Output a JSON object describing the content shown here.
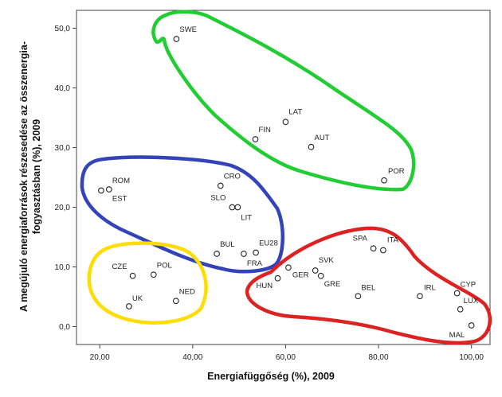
{
  "chart_data": {
    "type": "scatter",
    "xlabel": "Energiafüggőség (%), 2009",
    "ylabel_lines": [
      "A megújuló energiaforrások részesedése az összenergia-",
      "fogyasztásban (%), 2009"
    ],
    "xlim": [
      15,
      104
    ],
    "ylim": [
      -3,
      53
    ],
    "x_ticks": [
      20,
      40,
      60,
      80,
      100
    ],
    "x_tick_labels": [
      "20,00",
      "40,00",
      "60,00",
      "80,00",
      "100,00"
    ],
    "y_ticks": [
      0,
      10,
      20,
      30,
      40,
      50
    ],
    "y_tick_labels": [
      "0,0",
      "10,0",
      "20,0",
      "30,0",
      "40,0",
      "50,0"
    ],
    "grid": false,
    "legend": "none",
    "points": [
      {
        "label": "SWE",
        "x": 36.5,
        "y": 48.2
      },
      {
        "label": "LAT",
        "x": 60.0,
        "y": 34.3
      },
      {
        "label": "FIN",
        "x": 53.5,
        "y": 31.4
      },
      {
        "label": "AUT",
        "x": 65.5,
        "y": 30.1
      },
      {
        "label": "POR",
        "x": 81.2,
        "y": 24.5
      },
      {
        "label": "ROM",
        "x": 22.0,
        "y": 23.0
      },
      {
        "label": "EST",
        "x": 20.3,
        "y": 22.8
      },
      {
        "label": "CRO",
        "x": 46.0,
        "y": 23.6
      },
      {
        "label": "SLO",
        "x": 48.5,
        "y": 20.0
      },
      {
        "label": "LIT",
        "x": 49.7,
        "y": 20.0
      },
      {
        "label": "BUL",
        "x": 45.2,
        "y": 12.2
      },
      {
        "label": "FRA",
        "x": 51.0,
        "y": 12.2
      },
      {
        "label": "EU28",
        "x": 53.6,
        "y": 12.4
      },
      {
        "label": "CZE",
        "x": 27.1,
        "y": 8.5
      },
      {
        "label": "POL",
        "x": 31.6,
        "y": 8.7
      },
      {
        "label": "UK",
        "x": 26.3,
        "y": 3.4
      },
      {
        "label": "NED",
        "x": 36.4,
        "y": 4.3
      },
      {
        "label": "SPA",
        "x": 78.9,
        "y": 13.1
      },
      {
        "label": "ITA",
        "x": 81.0,
        "y": 12.8
      },
      {
        "label": "SVK",
        "x": 66.4,
        "y": 9.4
      },
      {
        "label": "GER",
        "x": 60.6,
        "y": 9.9
      },
      {
        "label": "GRE",
        "x": 67.6,
        "y": 8.5
      },
      {
        "label": "HUN",
        "x": 58.3,
        "y": 8.1
      },
      {
        "label": "BEL",
        "x": 75.6,
        "y": 5.1
      },
      {
        "label": "IRL",
        "x": 88.9,
        "y": 5.1
      },
      {
        "label": "CYP",
        "x": 96.9,
        "y": 5.6
      },
      {
        "label": "LUX",
        "x": 97.6,
        "y": 2.9
      },
      {
        "label": "MAL",
        "x": 100.0,
        "y": 0.2
      }
    ],
    "cluster_outlines": [
      {
        "color": "#22cc33"
      },
      {
        "color": "#3344bb"
      },
      {
        "color": "#ffdd00"
      },
      {
        "color": "#dd2222"
      }
    ]
  }
}
